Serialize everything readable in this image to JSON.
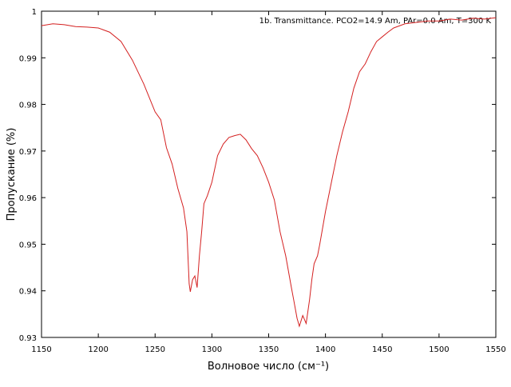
{
  "chart_data": {
    "type": "line",
    "title": "1b. Transmittance. PCO2=14.9 Am, PAr=0.0 Am, T=300 K",
    "xlabel": "Волновое число (см⁻¹)",
    "ylabel": "Пропускание (%)",
    "xlim": [
      1150,
      1550
    ],
    "xticks": [
      1150,
      1200,
      1250,
      1300,
      1350,
      1400,
      1450,
      1500,
      1550
    ],
    "ylim": [
      0.93,
      1
    ],
    "yticks": [
      0.93,
      0.94,
      0.95,
      0.96,
      0.97,
      0.98,
      0.99,
      1
    ],
    "series": [
      {
        "name": "1b. Transmittance",
        "color": "#d42020",
        "x": [
          1150,
          1160,
          1170,
          1180,
          1190,
          1200,
          1210,
          1220,
          1230,
          1240,
          1250,
          1255,
          1260,
          1265,
          1270,
          1275,
          1278,
          1280,
          1281,
          1283,
          1285,
          1287,
          1289,
          1291,
          1293,
          1296,
          1300,
          1305,
          1310,
          1315,
          1320,
          1325,
          1330,
          1335,
          1340,
          1345,
          1350,
          1355,
          1360,
          1365,
          1370,
          1372,
          1375,
          1377,
          1380,
          1383,
          1386,
          1388,
          1390,
          1393,
          1395,
          1400,
          1405,
          1410,
          1415,
          1420,
          1425,
          1430,
          1435,
          1440,
          1445,
          1450,
          1455,
          1460,
          1470,
          1480,
          1490,
          1500,
          1510,
          1520,
          1530,
          1540,
          1550
        ],
        "values": [
          0.9969,
          0.9973,
          0.9971,
          0.9967,
          0.9966,
          0.9964,
          0.9955,
          0.9935,
          0.9895,
          0.9844,
          0.9784,
          0.9767,
          0.9707,
          0.9672,
          0.962,
          0.9578,
          0.9527,
          0.9415,
          0.9398,
          0.9424,
          0.9432,
          0.9407,
          0.9475,
          0.9527,
          0.9587,
          0.9604,
          0.9633,
          0.969,
          0.9715,
          0.9729,
          0.9733,
          0.9736,
          0.9724,
          0.9705,
          0.969,
          0.9664,
          0.9633,
          0.9595,
          0.9527,
          0.9475,
          0.9407,
          0.9381,
          0.9341,
          0.9324,
          0.9347,
          0.933,
          0.9381,
          0.9424,
          0.9458,
          0.9475,
          0.95,
          0.957,
          0.963,
          0.969,
          0.9741,
          0.9784,
          0.9835,
          0.987,
          0.9887,
          0.9913,
          0.9935,
          0.9945,
          0.9955,
          0.9964,
          0.9973,
          0.9976,
          0.9979,
          0.9979,
          0.9983,
          0.9981,
          0.9985,
          0.9983,
          0.9986
        ]
      }
    ]
  }
}
